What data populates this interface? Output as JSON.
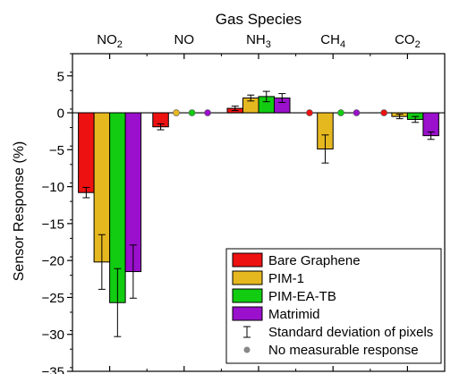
{
  "chart_data": {
    "type": "bar",
    "xlabel": "Gas Species",
    "ylabel": "Sensor Response (%)",
    "categories": [
      "NO2",
      "NO",
      "NH3",
      "CH4",
      "CO2"
    ],
    "category_labels": [
      {
        "base": "NO",
        "sub": "2"
      },
      {
        "base": "NO",
        "sub": ""
      },
      {
        "base": "NH",
        "sub": "3"
      },
      {
        "base": "CH",
        "sub": "4"
      },
      {
        "base": "CO",
        "sub": "2"
      }
    ],
    "ylim": [
      -35,
      8
    ],
    "yticks": [
      5,
      0,
      -5,
      -10,
      -15,
      -20,
      -25,
      -30,
      -35
    ],
    "series": [
      {
        "name": "Bare Graphene",
        "color": "#ee1111",
        "values": [
          -10.8,
          -1.9,
          0.6,
          null,
          null
        ],
        "errors": [
          0.7,
          0.4,
          0.3,
          null,
          null
        ],
        "no_response": [
          false,
          false,
          false,
          true,
          true
        ]
      },
      {
        "name": "PIM-1",
        "color": "#e6b820",
        "values": [
          -20.2,
          null,
          2.0,
          -4.9,
          -0.5
        ],
        "errors": [
          3.7,
          null,
          0.4,
          1.9,
          0.3
        ],
        "no_response": [
          false,
          true,
          false,
          false,
          false
        ]
      },
      {
        "name": "PIM-EA-TB",
        "color": "#11cc11",
        "values": [
          -25.7,
          null,
          2.2,
          null,
          -0.9
        ],
        "errors": [
          4.6,
          null,
          0.7,
          null,
          0.4
        ],
        "no_response": [
          false,
          true,
          false,
          true,
          false
        ]
      },
      {
        "name": "Matrimid",
        "color": "#9a10cc",
        "values": [
          -21.5,
          null,
          2.0,
          null,
          -3.1
        ],
        "errors": [
          3.6,
          null,
          0.6,
          null,
          0.5
        ],
        "no_response": [
          false,
          true,
          false,
          true,
          false
        ]
      }
    ],
    "legend": {
      "position": "bottom-right",
      "errorbar_label": "Standard deviation of pixels",
      "no_response_label": "No measurable response"
    },
    "no_response_color": "#888888",
    "grid": false
  }
}
